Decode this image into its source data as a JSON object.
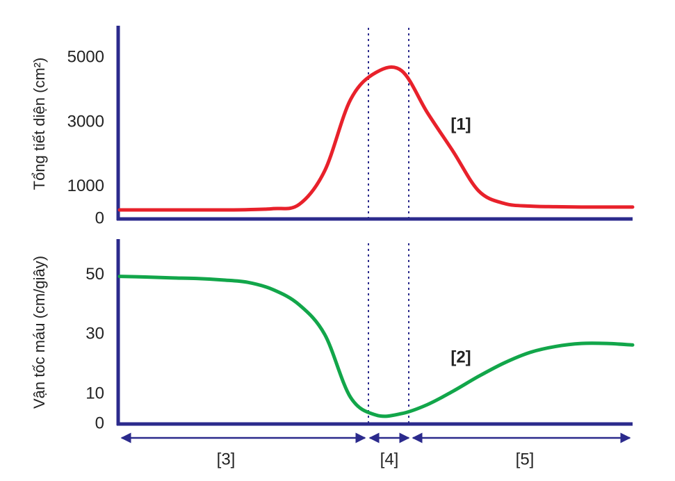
{
  "chart_data": [
    {
      "type": "line",
      "y_label": "Tổng tiết diện (cm²)",
      "annotation": "[1]",
      "categories": [
        null,
        null,
        null,
        null,
        null,
        null,
        null,
        null,
        null,
        null,
        null,
        null,
        null,
        null,
        null,
        null,
        null,
        null,
        null,
        null,
        null
      ],
      "series": [
        {
          "color": "#e8212b",
          "values": [
            280,
            280,
            280,
            280,
            280,
            290,
            320,
            450,
            1500,
            3700,
            4550,
            4600,
            3300,
            2100,
            870,
            480,
            400,
            380,
            370,
            370,
            370
          ]
        }
      ],
      "ylim": [
        0,
        6000
      ],
      "yticks": [
        0,
        1000,
        3000,
        5000
      ],
      "grid": false
    },
    {
      "type": "line",
      "y_label": "Vận tốc máu (cm/giây)",
      "annotation": "[2]",
      "categories": [
        null,
        null,
        null,
        null,
        null,
        null,
        null,
        null,
        null,
        null,
        null,
        null,
        null,
        null,
        null,
        null,
        null,
        null,
        null,
        null,
        null
      ],
      "series": [
        {
          "color": "#12a64a",
          "values": [
            49.5,
            49.3,
            49,
            48.8,
            48.3,
            47.5,
            45,
            40,
            30,
            9,
            3,
            3.5,
            6.5,
            11,
            16,
            20.5,
            24,
            26,
            27,
            27,
            26.5
          ]
        }
      ],
      "ylim": [
        0,
        62
      ],
      "yticks": [
        0,
        10,
        30,
        50
      ],
      "grid": false
    }
  ],
  "regions": [
    "[3]",
    "[4]",
    "[5]"
  ]
}
